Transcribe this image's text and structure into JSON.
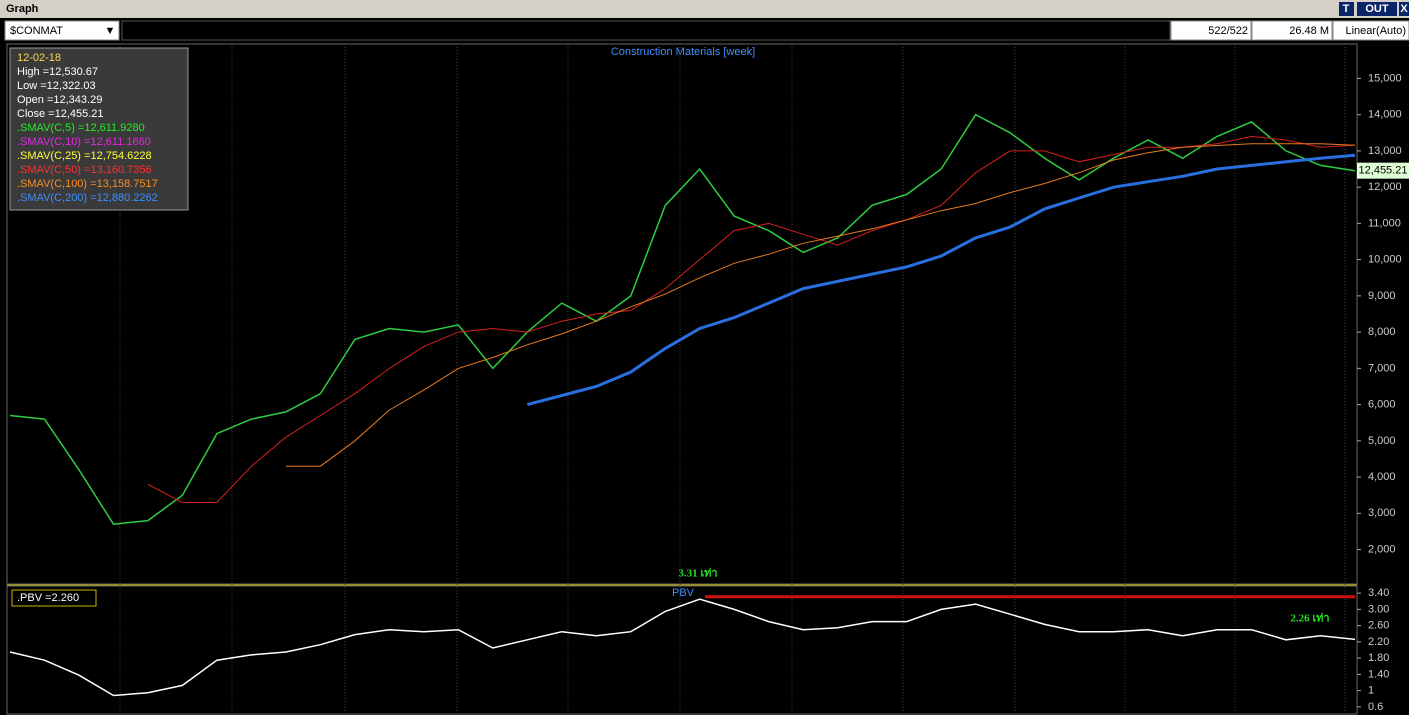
{
  "window": {
    "title": "Graph",
    "buttons": [
      "T",
      "OUT",
      "X"
    ]
  },
  "toolbar": {
    "symbol": "$CONMAT",
    "count": "522/522",
    "volume": "26.48 M",
    "scale": "Linear(Auto)"
  },
  "chart_data": [
    {
      "type": "line",
      "title": "Construction Materials [week]",
      "info": [
        {
          "text": "12-02-18",
          "color": "#ffd94a"
        },
        {
          "text": "High  =12,530.67",
          "color": "#ffffff"
        },
        {
          "text": "Low  =12,322.03",
          "color": "#ffffff"
        },
        {
          "text": "Open  =12,343.29",
          "color": "#ffffff"
        },
        {
          "text": "Close  =12,455.21",
          "color": "#ffffff"
        },
        {
          "text": ".SMAV(C,5)    =12,611.9280",
          "color": "#22ee22"
        },
        {
          "text": ".SMAV(C,10)    =12,611.1660",
          "color": "#ee22ee"
        },
        {
          "text": ".SMAV(C,25)   =12,754.6228",
          "color": "#ffff33"
        },
        {
          "text": ".SMAV(C,50)    =13,160.7356",
          "color": "#ff3030"
        },
        {
          "text": ".SMAV(C,100)   =13,158.7517",
          "color": "#ff8c1a"
        },
        {
          "text": ".SMAV(C,200)   =12,880.2262",
          "color": "#3d8fff"
        }
      ],
      "last_value_label": "12,455.21",
      "ylim": [
        1050,
        15950
      ],
      "yticks": [
        {
          "value": 2000,
          "label": "2,000"
        },
        {
          "value": 3000,
          "label": "3,000"
        },
        {
          "value": 4000,
          "label": "4,000"
        },
        {
          "value": 5000,
          "label": "5,000"
        },
        {
          "value": 6000,
          "label": "6,000"
        },
        {
          "value": 7000,
          "label": "7,000"
        },
        {
          "value": 8000,
          "label": "8,000"
        },
        {
          "value": 9000,
          "label": "9,000"
        },
        {
          "value": 10000,
          "label": "10,000"
        },
        {
          "value": 11000,
          "label": "11,000"
        },
        {
          "value": 12000,
          "label": "12,000"
        },
        {
          "value": 13000,
          "label": "13,000"
        },
        {
          "value": 14000,
          "label": "14,000"
        },
        {
          "value": 15000,
          "label": "15,000"
        }
      ],
      "series": [
        {
          "color": "#2ecc40",
          "width": 1.5,
          "values": [
            5700,
            5600,
            4200,
            2700,
            2800,
            3500,
            5200,
            5600,
            5800,
            6300,
            7800,
            8100,
            8000,
            8200,
            7000,
            8000,
            8800,
            8300,
            9000,
            11500,
            12500,
            11200,
            10800,
            10200,
            10600,
            11500,
            11800,
            12500,
            14000,
            13500,
            12800,
            12200,
            12800,
            13300,
            12800,
            13400,
            13800,
            13000,
            12600,
            12455.21
          ]
        },
        {
          "color": "#d42020",
          "width": 1,
          "values": [
            null,
            null,
            null,
            null,
            3800,
            3300,
            3300,
            4300,
            5100,
            5700,
            6300,
            7000,
            7600,
            8000,
            8100,
            8000,
            8300,
            8500,
            8600,
            9200,
            10000,
            10800,
            11000,
            10700,
            10400,
            10800,
            11100,
            11500,
            12400,
            13000,
            13000,
            12700,
            12900,
            13100,
            13100,
            13200,
            13400,
            13300,
            13100,
            13160.7356
          ]
        },
        {
          "color": "#e87a1e",
          "width": 1,
          "values": [
            null,
            null,
            null,
            null,
            null,
            null,
            null,
            null,
            4300,
            4300,
            5000,
            5850,
            6400,
            7000,
            7300,
            7650,
            7950,
            8300,
            8700,
            9050,
            9500,
            9900,
            10150,
            10450,
            10650,
            10850,
            11100,
            11350,
            11550,
            11850,
            12100,
            12400,
            12750,
            12950,
            13100,
            13150,
            13200,
            13200,
            13200,
            13158.7517
          ]
        },
        {
          "color": "#2a6fe0",
          "width": 3,
          "values": [
            null,
            null,
            null,
            null,
            null,
            null,
            null,
            null,
            null,
            null,
            null,
            null,
            null,
            null,
            null,
            6000,
            6250,
            6500,
            6900,
            7550,
            8100,
            8400,
            8800,
            9200,
            9400,
            9600,
            9800,
            10100,
            10600,
            10900,
            11400,
            11700,
            12000,
            12150,
            12300,
            12500,
            12600,
            12700,
            12800,
            12880.2262
          ]
        }
      ]
    },
    {
      "type": "line",
      "series_label": "PBV",
      "info": ".PBV  =2.260",
      "max_line": 3.31,
      "annotations": [
        "3.31 เท่า",
        "2.26 เท่า"
      ],
      "ylim": [
        0.425,
        3.575
      ],
      "yticks": [
        {
          "value": 3.4,
          "label": "3.40"
        },
        {
          "value": 3,
          "label": "3.00"
        },
        {
          "value": 2.6,
          "label": "2.60"
        },
        {
          "value": 2.2,
          "label": "2.20"
        },
        {
          "value": 1.8,
          "label": "1.80"
        },
        {
          "value": 1.4,
          "label": "1.40"
        },
        1,
        0.6
      ],
      "series": [
        {
          "color": "#ffffff",
          "width": 1.5,
          "values": [
            1.95,
            1.75,
            1.38,
            0.88,
            0.95,
            1.13,
            1.75,
            1.88,
            1.95,
            2.13,
            2.38,
            2.5,
            2.45,
            2.5,
            2.05,
            2.25,
            2.45,
            2.35,
            2.45,
            2.95,
            3.25,
            3.0,
            2.7,
            2.5,
            2.55,
            2.7,
            2.7,
            3.0,
            3.13,
            2.88,
            2.63,
            2.45,
            2.45,
            2.5,
            2.35,
            2.5,
            2.5,
            2.25,
            2.35,
            2.26
          ]
        }
      ]
    }
  ]
}
